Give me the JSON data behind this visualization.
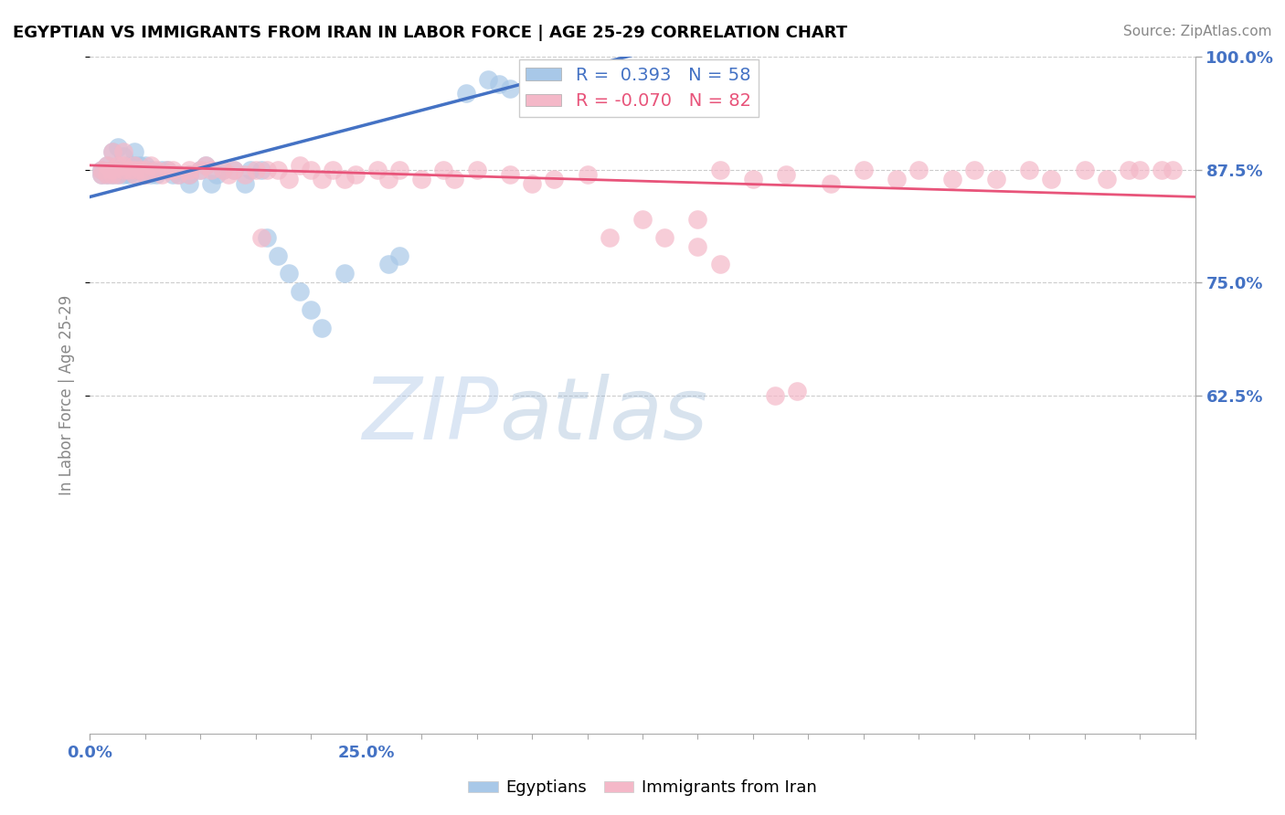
{
  "title": "EGYPTIAN VS IMMIGRANTS FROM IRAN IN LABOR FORCE | AGE 25-29 CORRELATION CHART",
  "source": "Source: ZipAtlas.com",
  "ylabel": "In Labor Force | Age 25-29",
  "r_blue": 0.393,
  "n_blue": 58,
  "r_pink": -0.07,
  "n_pink": 82,
  "color_blue": "#a8c8e8",
  "color_pink": "#f4b8c8",
  "line_blue": "#4472c4",
  "line_pink": "#e8547a",
  "legend_label_blue": "Egyptians",
  "legend_label_pink": "Immigrants from Iran",
  "background_color": "#ffffff",
  "xmin": 0.0,
  "xmax": 1.0,
  "ymin": 0.25,
  "ymax": 1.0,
  "ytick_vals": [
    0.625,
    0.75,
    0.875,
    1.0
  ],
  "ytick_labels": [
    "62.5%",
    "75.0%",
    "87.5%",
    "100.0%"
  ],
  "xtick_vals": [
    0.0,
    0.25
  ],
  "xtick_labels": [
    "0.0%",
    "25.0%"
  ],
  "blue_x": [
    0.01,
    0.01,
    0.015,
    0.015,
    0.02,
    0.02,
    0.02,
    0.025,
    0.025,
    0.025,
    0.03,
    0.03,
    0.03,
    0.035,
    0.035,
    0.04,
    0.04,
    0.04,
    0.04,
    0.045,
    0.045,
    0.05,
    0.05,
    0.055,
    0.055,
    0.06,
    0.065,
    0.07,
    0.075,
    0.08,
    0.09,
    0.09,
    0.1,
    0.105,
    0.11,
    0.115,
    0.12,
    0.13,
    0.14,
    0.145,
    0.155,
    0.16,
    0.17,
    0.18,
    0.19,
    0.2,
    0.21,
    0.23,
    0.27,
    0.28,
    0.34,
    0.36,
    0.37,
    0.38,
    0.4,
    0.42,
    0.43,
    0.44
  ],
  "blue_y": [
    0.875,
    0.87,
    0.88,
    0.87,
    0.895,
    0.875,
    0.87,
    0.9,
    0.875,
    0.87,
    0.89,
    0.875,
    0.87,
    0.88,
    0.87,
    0.895,
    0.88,
    0.875,
    0.87,
    0.88,
    0.875,
    0.88,
    0.87,
    0.875,
    0.87,
    0.87,
    0.875,
    0.875,
    0.87,
    0.87,
    0.87,
    0.86,
    0.875,
    0.88,
    0.86,
    0.87,
    0.875,
    0.875,
    0.86,
    0.875,
    0.875,
    0.8,
    0.78,
    0.76,
    0.74,
    0.72,
    0.7,
    0.76,
    0.77,
    0.78,
    0.96,
    0.975,
    0.97,
    0.965,
    0.97,
    0.97,
    0.975,
    0.975
  ],
  "pink_x": [
    0.01,
    0.01,
    0.015,
    0.015,
    0.02,
    0.02,
    0.02,
    0.025,
    0.025,
    0.03,
    0.03,
    0.03,
    0.035,
    0.04,
    0.04,
    0.04,
    0.045,
    0.05,
    0.05,
    0.055,
    0.06,
    0.065,
    0.07,
    0.075,
    0.08,
    0.09,
    0.09,
    0.1,
    0.105,
    0.11,
    0.12,
    0.125,
    0.13,
    0.14,
    0.15,
    0.155,
    0.16,
    0.17,
    0.18,
    0.19,
    0.2,
    0.21,
    0.22,
    0.23,
    0.24,
    0.26,
    0.27,
    0.28,
    0.3,
    0.32,
    0.33,
    0.35,
    0.38,
    0.4,
    0.42,
    0.45,
    0.47,
    0.5,
    0.52,
    0.55,
    0.57,
    0.6,
    0.63,
    0.67,
    0.7,
    0.73,
    0.75,
    0.78,
    0.8,
    0.82,
    0.85,
    0.87,
    0.9,
    0.92,
    0.94,
    0.95,
    0.97,
    0.98,
    0.55,
    0.57,
    0.62,
    0.64
  ],
  "pink_y": [
    0.875,
    0.87,
    0.88,
    0.87,
    0.895,
    0.875,
    0.87,
    0.88,
    0.87,
    0.895,
    0.88,
    0.875,
    0.875,
    0.88,
    0.875,
    0.87,
    0.875,
    0.875,
    0.87,
    0.88,
    0.875,
    0.87,
    0.875,
    0.875,
    0.87,
    0.875,
    0.87,
    0.875,
    0.88,
    0.875,
    0.875,
    0.87,
    0.875,
    0.87,
    0.875,
    0.8,
    0.875,
    0.875,
    0.865,
    0.88,
    0.875,
    0.865,
    0.875,
    0.865,
    0.87,
    0.875,
    0.865,
    0.875,
    0.865,
    0.875,
    0.865,
    0.875,
    0.87,
    0.86,
    0.865,
    0.87,
    0.8,
    0.82,
    0.8,
    0.82,
    0.875,
    0.865,
    0.87,
    0.86,
    0.875,
    0.865,
    0.875,
    0.865,
    0.875,
    0.865,
    0.875,
    0.865,
    0.875,
    0.865,
    0.875,
    0.875,
    0.875,
    0.875,
    0.79,
    0.77,
    0.625,
    0.63
  ],
  "blue_line_x0": 0.0,
  "blue_line_x1": 0.5,
  "blue_line_y0": 0.845,
  "blue_line_y1": 1.005,
  "pink_line_x0": 0.0,
  "pink_line_x1": 1.0,
  "pink_line_y0": 0.88,
  "pink_line_y1": 0.845,
  "watermark_zip": "ZIP",
  "watermark_atlas": "atlas",
  "title_fontsize": 13,
  "tick_fontsize": 13,
  "label_fontsize": 12
}
